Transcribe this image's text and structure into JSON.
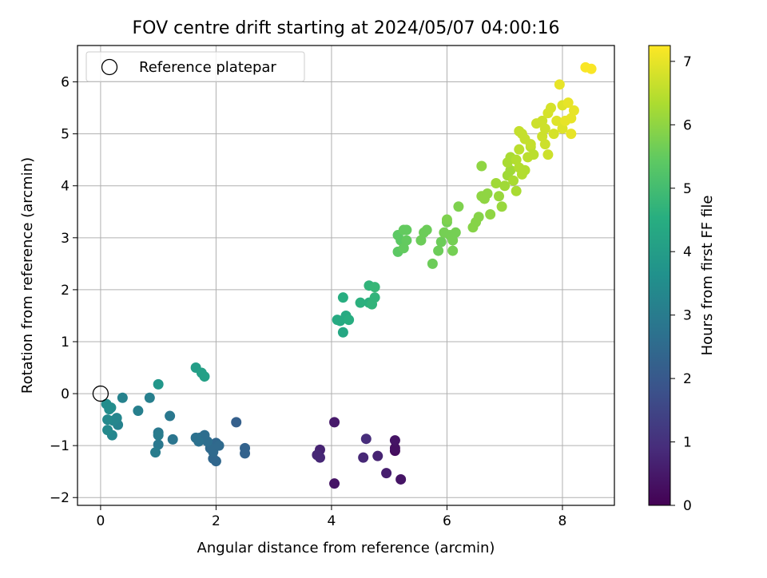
{
  "chart_data": {
    "type": "scatter",
    "title": "FOV centre drift starting at 2024/05/07 04:00:16",
    "xlabel": "Angular distance from reference (arcmin)",
    "ylabel": "Rotation from reference (arcmin)",
    "xlim": [
      -0.4,
      8.9
    ],
    "ylim": [
      -2.15,
      6.7
    ],
    "x_ticks": [
      0,
      2,
      4,
      6,
      8
    ],
    "y_ticks": [
      -2,
      -1,
      0,
      1,
      2,
      3,
      4,
      5,
      6
    ],
    "grid": true,
    "legend": {
      "position": "top-left",
      "entries": [
        "Reference platepar"
      ]
    },
    "reference_point": {
      "x": 0,
      "y": 0,
      "label": "Reference platepar"
    },
    "colorbar": {
      "label": "Hours from first FF file",
      "range": [
        0,
        7.25
      ],
      "ticks": [
        0,
        1,
        2,
        3,
        4,
        5,
        6,
        7
      ],
      "colormap": "viridis"
    },
    "points": [
      {
        "x": 4.05,
        "y": -1.73,
        "c": 0.4
      },
      {
        "x": 4.05,
        "y": -0.55,
        "c": 0.5
      },
      {
        "x": 3.8,
        "y": -1.08,
        "c": 0.7
      },
      {
        "x": 3.75,
        "y": -1.18,
        "c": 0.8
      },
      {
        "x": 3.8,
        "y": -1.23,
        "c": 0.8
      },
      {
        "x": 5.1,
        "y": -1.1,
        "c": 0.2
      },
      {
        "x": 5.1,
        "y": -1.05,
        "c": 0.3
      },
      {
        "x": 5.1,
        "y": -0.9,
        "c": 0.4
      },
      {
        "x": 5.2,
        "y": -1.65,
        "c": 0.4
      },
      {
        "x": 4.95,
        "y": -1.53,
        "c": 0.6
      },
      {
        "x": 4.8,
        "y": -1.2,
        "c": 0.7
      },
      {
        "x": 4.55,
        "y": -1.23,
        "c": 0.8
      },
      {
        "x": 4.6,
        "y": -0.87,
        "c": 0.9
      },
      {
        "x": 2.35,
        "y": -0.55,
        "c": 2.2
      },
      {
        "x": 2.5,
        "y": -1.05,
        "c": 2.3
      },
      {
        "x": 2.5,
        "y": -1.15,
        "c": 2.3
      },
      {
        "x": 2.0,
        "y": -1.3,
        "c": 2.4
      },
      {
        "x": 1.95,
        "y": -1.25,
        "c": 2.4
      },
      {
        "x": 2.0,
        "y": -0.95,
        "c": 2.4
      },
      {
        "x": 1.9,
        "y": -1.05,
        "c": 2.5
      },
      {
        "x": 1.95,
        "y": -1.12,
        "c": 2.5
      },
      {
        "x": 2.05,
        "y": -1.0,
        "c": 2.5
      },
      {
        "x": 1.85,
        "y": -0.92,
        "c": 2.6
      },
      {
        "x": 1.8,
        "y": -0.8,
        "c": 2.6
      },
      {
        "x": 1.72,
        "y": -0.85,
        "c": 2.6
      },
      {
        "x": 1.65,
        "y": -0.85,
        "c": 2.7
      },
      {
        "x": 1.7,
        "y": -0.92,
        "c": 2.7
      },
      {
        "x": 1.25,
        "y": -0.88,
        "c": 2.8
      },
      {
        "x": 1.2,
        "y": -0.43,
        "c": 2.9
      },
      {
        "x": 1.0,
        "y": -0.75,
        "c": 2.9
      },
      {
        "x": 1.0,
        "y": -0.98,
        "c": 2.9
      },
      {
        "x": 0.95,
        "y": -1.13,
        "c": 3.0
      },
      {
        "x": 1.0,
        "y": -0.8,
        "c": 3.0
      },
      {
        "x": 0.85,
        "y": -0.08,
        "c": 3.1
      },
      {
        "x": 0.65,
        "y": -0.33,
        "c": 3.1
      },
      {
        "x": 0.38,
        "y": -0.08,
        "c": 3.2
      },
      {
        "x": 0.3,
        "y": -0.6,
        "c": 3.2
      },
      {
        "x": 0.28,
        "y": -0.47,
        "c": 3.3
      },
      {
        "x": 0.22,
        "y": -0.52,
        "c": 3.3
      },
      {
        "x": 0.2,
        "y": -0.8,
        "c": 3.3
      },
      {
        "x": 0.12,
        "y": -0.7,
        "c": 3.4
      },
      {
        "x": 0.12,
        "y": -0.5,
        "c": 3.4
      },
      {
        "x": 0.15,
        "y": -0.3,
        "c": 3.5
      },
      {
        "x": 0.1,
        "y": -0.2,
        "c": 3.5
      },
      {
        "x": 0.18,
        "y": -0.27,
        "c": 3.5
      },
      {
        "x": 1.0,
        "y": 0.18,
        "c": 3.8
      },
      {
        "x": 1.65,
        "y": 0.5,
        "c": 4.0
      },
      {
        "x": 1.75,
        "y": 0.4,
        "c": 4.1
      },
      {
        "x": 1.8,
        "y": 0.33,
        "c": 4.1
      },
      {
        "x": 4.2,
        "y": 1.18,
        "c": 4.3
      },
      {
        "x": 4.1,
        "y": 1.42,
        "c": 4.4
      },
      {
        "x": 4.15,
        "y": 1.4,
        "c": 4.4
      },
      {
        "x": 4.25,
        "y": 1.5,
        "c": 4.4
      },
      {
        "x": 4.3,
        "y": 1.42,
        "c": 4.5
      },
      {
        "x": 4.2,
        "y": 1.85,
        "c": 4.5
      },
      {
        "x": 4.5,
        "y": 1.75,
        "c": 4.6
      },
      {
        "x": 4.65,
        "y": 1.75,
        "c": 4.6
      },
      {
        "x": 4.75,
        "y": 1.85,
        "c": 4.7
      },
      {
        "x": 4.7,
        "y": 1.72,
        "c": 4.7
      },
      {
        "x": 4.65,
        "y": 2.08,
        "c": 4.7
      },
      {
        "x": 4.75,
        "y": 2.05,
        "c": 4.8
      },
      {
        "x": 5.15,
        "y": 2.73,
        "c": 5.4
      },
      {
        "x": 5.2,
        "y": 2.95,
        "c": 5.4
      },
      {
        "x": 5.15,
        "y": 3.05,
        "c": 5.4
      },
      {
        "x": 5.25,
        "y": 3.15,
        "c": 5.5
      },
      {
        "x": 5.3,
        "y": 3.15,
        "c": 5.5
      },
      {
        "x": 5.25,
        "y": 2.8,
        "c": 5.5
      },
      {
        "x": 5.3,
        "y": 2.95,
        "c": 5.5
      },
      {
        "x": 5.55,
        "y": 2.95,
        "c": 5.6
      },
      {
        "x": 5.6,
        "y": 3.1,
        "c": 5.6
      },
      {
        "x": 5.65,
        "y": 3.15,
        "c": 5.6
      },
      {
        "x": 5.75,
        "y": 2.5,
        "c": 5.6
      },
      {
        "x": 5.85,
        "y": 2.75,
        "c": 5.6
      },
      {
        "x": 5.9,
        "y": 2.92,
        "c": 5.6
      },
      {
        "x": 5.95,
        "y": 3.1,
        "c": 5.7
      },
      {
        "x": 6.0,
        "y": 3.3,
        "c": 5.7
      },
      {
        "x": 6.05,
        "y": 3.05,
        "c": 5.7
      },
      {
        "x": 6.1,
        "y": 2.95,
        "c": 5.7
      },
      {
        "x": 6.15,
        "y": 3.1,
        "c": 5.7
      },
      {
        "x": 6.1,
        "y": 2.75,
        "c": 5.7
      },
      {
        "x": 6.2,
        "y": 3.6,
        "c": 5.8
      },
      {
        "x": 6.0,
        "y": 3.35,
        "c": 5.8
      },
      {
        "x": 6.45,
        "y": 3.2,
        "c": 5.9
      },
      {
        "x": 6.5,
        "y": 3.3,
        "c": 5.9
      },
      {
        "x": 6.55,
        "y": 3.4,
        "c": 5.9
      },
      {
        "x": 6.6,
        "y": 3.8,
        "c": 6.0
      },
      {
        "x": 6.65,
        "y": 3.75,
        "c": 6.0
      },
      {
        "x": 6.7,
        "y": 3.85,
        "c": 6.0
      },
      {
        "x": 6.75,
        "y": 3.45,
        "c": 6.0
      },
      {
        "x": 6.6,
        "y": 4.38,
        "c": 6.0
      },
      {
        "x": 6.9,
        "y": 3.8,
        "c": 6.1
      },
      {
        "x": 6.95,
        "y": 3.6,
        "c": 6.1
      },
      {
        "x": 7.0,
        "y": 4.0,
        "c": 6.2
      },
      {
        "x": 7.05,
        "y": 4.2,
        "c": 6.2
      },
      {
        "x": 7.1,
        "y": 4.3,
        "c": 6.2
      },
      {
        "x": 7.15,
        "y": 4.1,
        "c": 6.3
      },
      {
        "x": 7.2,
        "y": 3.9,
        "c": 6.3
      },
      {
        "x": 6.85,
        "y": 4.05,
        "c": 6.2
      },
      {
        "x": 7.05,
        "y": 4.45,
        "c": 6.3
      },
      {
        "x": 7.1,
        "y": 4.55,
        "c": 6.3
      },
      {
        "x": 7.25,
        "y": 4.35,
        "c": 6.4
      },
      {
        "x": 7.35,
        "y": 4.3,
        "c": 6.4
      },
      {
        "x": 7.3,
        "y": 4.22,
        "c": 6.4
      },
      {
        "x": 7.2,
        "y": 4.5,
        "c": 6.4
      },
      {
        "x": 7.4,
        "y": 4.55,
        "c": 6.5
      },
      {
        "x": 7.45,
        "y": 4.75,
        "c": 6.5
      },
      {
        "x": 7.5,
        "y": 4.6,
        "c": 6.5
      },
      {
        "x": 7.25,
        "y": 4.7,
        "c": 6.5
      },
      {
        "x": 7.3,
        "y": 5.0,
        "c": 6.6
      },
      {
        "x": 7.25,
        "y": 5.05,
        "c": 6.6
      },
      {
        "x": 7.35,
        "y": 4.9,
        "c": 6.6
      },
      {
        "x": 7.45,
        "y": 4.8,
        "c": 6.6
      },
      {
        "x": 7.55,
        "y": 5.2,
        "c": 6.7
      },
      {
        "x": 7.65,
        "y": 5.25,
        "c": 6.7
      },
      {
        "x": 7.7,
        "y": 5.1,
        "c": 6.7
      },
      {
        "x": 7.75,
        "y": 5.4,
        "c": 6.8
      },
      {
        "x": 7.8,
        "y": 5.5,
        "c": 6.8
      },
      {
        "x": 7.65,
        "y": 4.95,
        "c": 6.7
      },
      {
        "x": 7.75,
        "y": 4.6,
        "c": 6.7
      },
      {
        "x": 7.7,
        "y": 4.8,
        "c": 6.7
      },
      {
        "x": 7.85,
        "y": 5.0,
        "c": 6.8
      },
      {
        "x": 7.9,
        "y": 5.25,
        "c": 6.9
      },
      {
        "x": 8.0,
        "y": 5.1,
        "c": 6.9
      },
      {
        "x": 8.0,
        "y": 5.55,
        "c": 6.9
      },
      {
        "x": 8.05,
        "y": 5.25,
        "c": 7.0
      },
      {
        "x": 8.1,
        "y": 5.6,
        "c": 7.0
      },
      {
        "x": 8.15,
        "y": 5.3,
        "c": 7.0
      },
      {
        "x": 8.15,
        "y": 5.0,
        "c": 7.0
      },
      {
        "x": 8.2,
        "y": 5.45,
        "c": 7.0
      },
      {
        "x": 7.95,
        "y": 5.95,
        "c": 7.0
      },
      {
        "x": 8.4,
        "y": 6.28,
        "c": 7.2
      },
      {
        "x": 8.5,
        "y": 6.25,
        "c": 7.2
      }
    ]
  }
}
